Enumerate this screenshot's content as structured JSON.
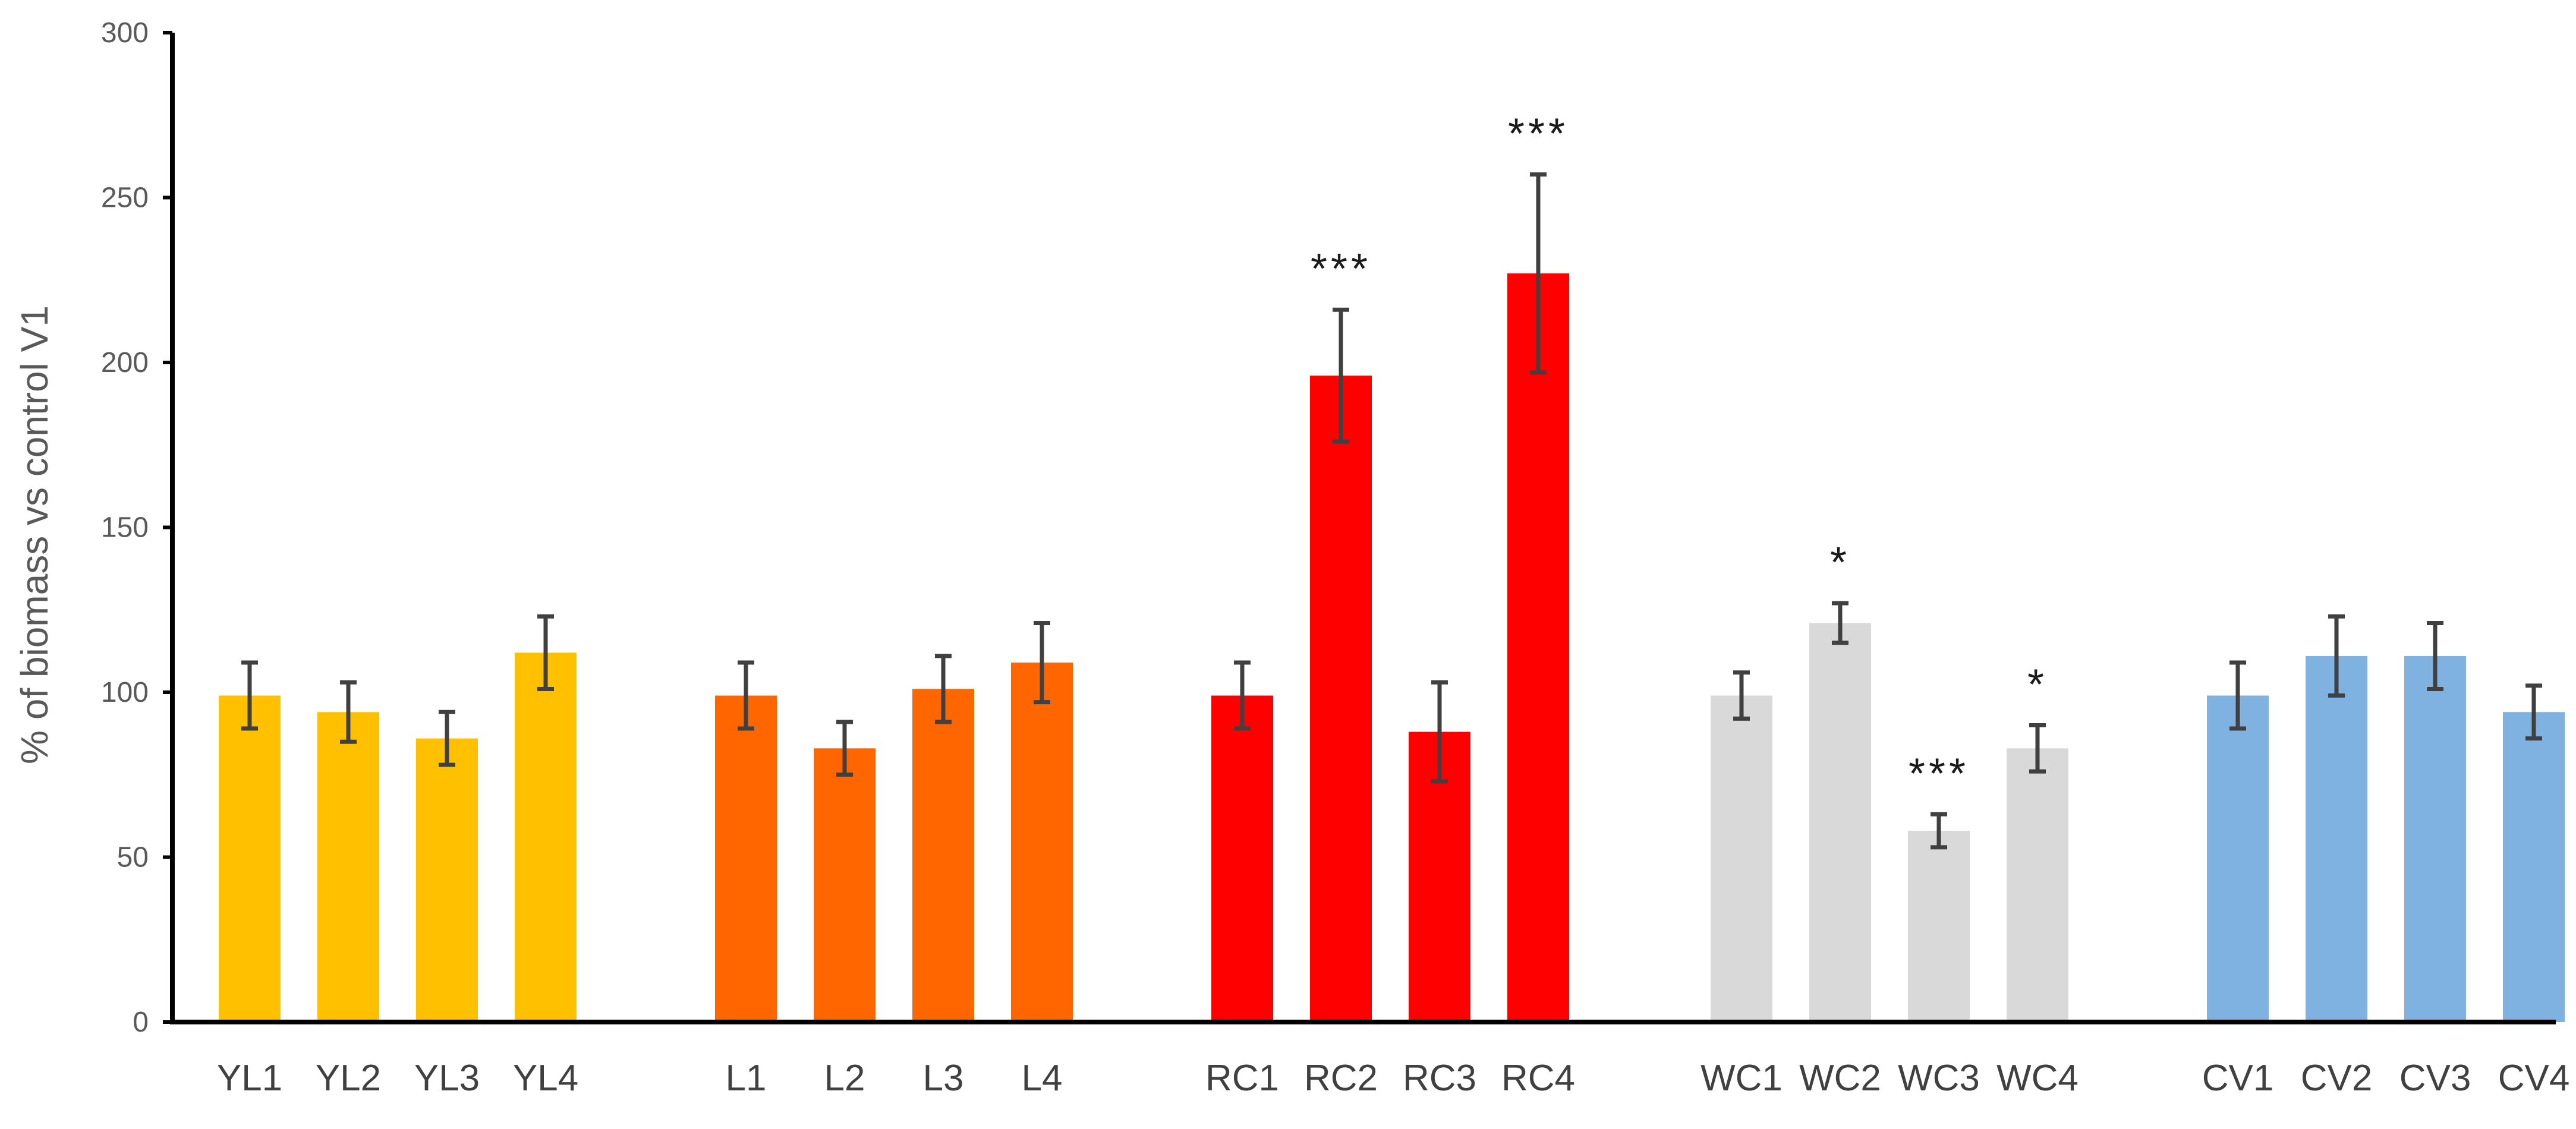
{
  "chart_data": {
    "type": "bar",
    "ylabel": "% of biomass vs control V1",
    "xlabel": "",
    "title": "",
    "ylim": [
      0,
      300
    ],
    "yticks": [
      0,
      50,
      100,
      150,
      200,
      250,
      300
    ],
    "grid": false,
    "legend": "none",
    "categories": [
      "YL1",
      "YL2",
      "YL3",
      "YL4",
      "L1",
      "L2",
      "L3",
      "L4",
      "RC1",
      "RC2",
      "RC3",
      "RC4",
      "WC1",
      "WC2",
      "WC3",
      "WC4",
      "CV1",
      "CV2",
      "CV3",
      "CV4"
    ],
    "values": [
      99,
      94,
      86,
      112,
      99,
      83,
      101,
      109,
      99,
      196,
      88,
      227,
      99,
      121,
      58,
      83,
      99,
      111,
      111,
      94
    ],
    "errors": [
      10,
      9,
      8,
      11,
      10,
      8,
      10,
      12,
      10,
      20,
      15,
      30,
      7,
      6,
      5,
      7,
      10,
      12,
      10,
      8
    ],
    "significance": [
      "",
      "",
      "",
      "",
      "",
      "",
      "",
      "",
      "",
      "***",
      "",
      "***",
      "",
      "*",
      "***",
      "*",
      "",
      "",
      "",
      ""
    ],
    "groups": [
      {
        "categories": [
          "YL1",
          "YL2",
          "YL3",
          "YL4"
        ],
        "color": "#FFC000"
      },
      {
        "categories": [
          "L1",
          "L2",
          "L3",
          "L4"
        ],
        "color": "#FF6600"
      },
      {
        "categories": [
          "RC1",
          "RC2",
          "RC3",
          "RC4"
        ],
        "color": "#FF0000"
      },
      {
        "categories": [
          "WC1",
          "WC2",
          "WC3",
          "WC4"
        ],
        "color": "#D9D9D9"
      },
      {
        "categories": [
          "CV1",
          "CV2",
          "CV3",
          "CV4"
        ],
        "color": "#7FB2E0"
      }
    ],
    "axis_color": "#000000",
    "errorbar_color": "#404040"
  }
}
